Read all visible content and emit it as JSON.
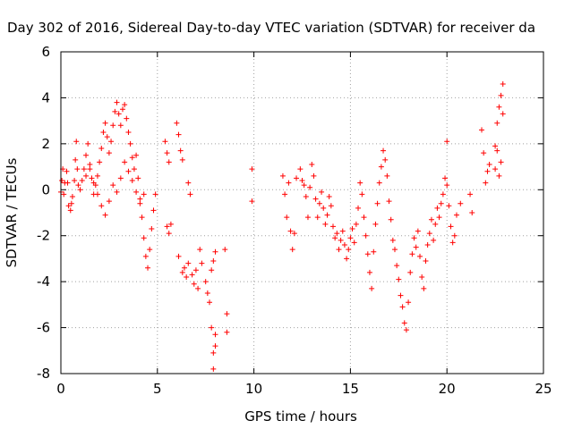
{
  "chart_data": {
    "type": "scatter",
    "title": "Day 302 of 2016, Sidereal Day-to-day VTEC variation (SDTVAR) for receiver da",
    "xlabel": "GPS time / hours",
    "ylabel": "SDTVAR / TECUs",
    "xlim": [
      0,
      25
    ],
    "ylim": [
      -8,
      6
    ],
    "xticks": [
      0,
      5,
      10,
      15,
      20,
      25
    ],
    "yticks": [
      -8,
      -6,
      -4,
      -2,
      0,
      2,
      4,
      6
    ],
    "grid": true,
    "marker": "+",
    "color": "#ff0000",
    "series": [
      {
        "name": "SDTVAR",
        "points": [
          [
            0.0,
            -0.1
          ],
          [
            0.05,
            0.4
          ],
          [
            0.1,
            0.9
          ],
          [
            0.15,
            -0.2
          ],
          [
            0.2,
            0.3
          ],
          [
            0.3,
            0.8
          ],
          [
            0.35,
            0.3
          ],
          [
            0.4,
            -0.7
          ],
          [
            0.5,
            -0.9
          ],
          [
            0.55,
            -0.6
          ],
          [
            0.6,
            -0.3
          ],
          [
            0.7,
            0.4
          ],
          [
            0.75,
            1.3
          ],
          [
            0.8,
            2.1
          ],
          [
            0.85,
            0.9
          ],
          [
            0.9,
            0.2
          ],
          [
            1.0,
            0.0
          ],
          [
            1.1,
            0.4
          ],
          [
            1.2,
            0.9
          ],
          [
            1.3,
            1.5
          ],
          [
            1.4,
            2.0
          ],
          [
            1.5,
            1.1
          ],
          [
            1.6,
            0.5
          ],
          [
            1.7,
            -0.2
          ],
          [
            1.8,
            0.2
          ],
          [
            1.9,
            0.6
          ],
          [
            2.0,
            1.2
          ],
          [
            2.1,
            1.8
          ],
          [
            2.2,
            2.5
          ],
          [
            2.3,
            2.9
          ],
          [
            2.4,
            2.3
          ],
          [
            2.5,
            1.6
          ],
          [
            2.6,
            2.1
          ],
          [
            2.7,
            2.8
          ],
          [
            2.8,
            3.4
          ],
          [
            2.9,
            3.8
          ],
          [
            3.0,
            3.3
          ],
          [
            3.1,
            2.8
          ],
          [
            3.2,
            3.5
          ],
          [
            3.3,
            3.7
          ],
          [
            3.4,
            3.1
          ],
          [
            3.5,
            2.5
          ],
          [
            3.6,
            2.0
          ],
          [
            3.7,
            1.4
          ],
          [
            3.8,
            0.9
          ],
          [
            3.9,
            1.5
          ],
          [
            4.0,
            0.5
          ],
          [
            4.1,
            -0.4
          ],
          [
            4.2,
            -1.2
          ],
          [
            4.3,
            -2.1
          ],
          [
            4.4,
            -2.9
          ],
          [
            4.5,
            -3.4
          ],
          [
            4.6,
            -2.6
          ],
          [
            4.7,
            -1.7
          ],
          [
            4.8,
            -0.9
          ],
          [
            4.9,
            -0.2
          ],
          [
            1.3,
            0.6
          ],
          [
            1.5,
            0.9
          ],
          [
            1.7,
            0.3
          ],
          [
            1.9,
            -0.2
          ],
          [
            2.1,
            -0.7
          ],
          [
            2.3,
            -1.1
          ],
          [
            2.5,
            -0.5
          ],
          [
            2.7,
            0.2
          ],
          [
            2.9,
            -0.1
          ],
          [
            3.1,
            0.5
          ],
          [
            3.3,
            1.2
          ],
          [
            3.5,
            0.8
          ],
          [
            3.7,
            0.4
          ],
          [
            3.9,
            -0.1
          ],
          [
            4.1,
            -0.6
          ],
          [
            4.3,
            -0.2
          ],
          [
            5.4,
            2.1
          ],
          [
            5.5,
            1.6
          ],
          [
            5.6,
            1.2
          ],
          [
            5.5,
            -1.6
          ],
          [
            5.6,
            -1.9
          ],
          [
            5.7,
            -1.5
          ],
          [
            6.0,
            2.9
          ],
          [
            6.1,
            2.4
          ],
          [
            6.1,
            -2.9
          ],
          [
            6.2,
            1.7
          ],
          [
            6.3,
            1.3
          ],
          [
            6.3,
            -3.6
          ],
          [
            6.4,
            -3.4
          ],
          [
            6.5,
            -3.8
          ],
          [
            6.6,
            -3.2
          ],
          [
            6.6,
            0.3
          ],
          [
            6.7,
            -0.2
          ],
          [
            6.8,
            -3.7
          ],
          [
            6.9,
            -4.1
          ],
          [
            7.0,
            -3.5
          ],
          [
            7.1,
            -4.3
          ],
          [
            7.2,
            -2.6
          ],
          [
            7.3,
            -3.2
          ],
          [
            7.5,
            -4.0
          ],
          [
            7.6,
            -4.5
          ],
          [
            7.7,
            -4.9
          ],
          [
            7.8,
            -3.5
          ],
          [
            7.9,
            -3.1
          ],
          [
            8.0,
            -2.7
          ],
          [
            7.8,
            -6.0
          ],
          [
            7.9,
            -7.1
          ],
          [
            8.0,
            -6.8
          ],
          [
            8.0,
            -6.3
          ],
          [
            7.9,
            -7.8
          ],
          [
            8.5,
            -2.6
          ],
          [
            8.6,
            -5.4
          ],
          [
            8.6,
            -6.2
          ],
          [
            9.9,
            0.9
          ],
          [
            9.9,
            -0.5
          ],
          [
            11.5,
            0.6
          ],
          [
            11.6,
            -0.2
          ],
          [
            11.7,
            -1.2
          ],
          [
            11.8,
            0.3
          ],
          [
            11.9,
            -1.8
          ],
          [
            12.0,
            -2.6
          ],
          [
            12.1,
            -1.9
          ],
          [
            12.2,
            0.5
          ],
          [
            12.4,
            0.9
          ],
          [
            12.5,
            0.4
          ],
          [
            12.6,
            0.2
          ],
          [
            12.7,
            -0.3
          ],
          [
            12.8,
            -1.2
          ],
          [
            12.9,
            0.1
          ],
          [
            13.0,
            1.1
          ],
          [
            13.1,
            0.6
          ],
          [
            13.2,
            -0.4
          ],
          [
            13.3,
            -1.2
          ],
          [
            13.4,
            -0.6
          ],
          [
            13.5,
            -0.1
          ],
          [
            13.6,
            -0.8
          ],
          [
            13.7,
            -1.5
          ],
          [
            13.8,
            -1.1
          ],
          [
            13.9,
            -0.3
          ],
          [
            14.0,
            -0.7
          ],
          [
            14.1,
            -1.6
          ],
          [
            14.2,
            -2.1
          ],
          [
            14.3,
            -1.9
          ],
          [
            14.4,
            -2.6
          ],
          [
            14.5,
            -2.2
          ],
          [
            14.6,
            -1.8
          ],
          [
            14.7,
            -2.4
          ],
          [
            14.8,
            -3.0
          ],
          [
            14.9,
            -2.6
          ],
          [
            15.0,
            -2.1
          ],
          [
            15.1,
            -1.7
          ],
          [
            15.2,
            -2.3
          ],
          [
            15.3,
            -1.5
          ],
          [
            15.4,
            -0.8
          ],
          [
            15.5,
            0.3
          ],
          [
            15.6,
            -0.2
          ],
          [
            15.7,
            -1.2
          ],
          [
            15.8,
            -2.0
          ],
          [
            15.9,
            -2.8
          ],
          [
            16.0,
            -3.6
          ],
          [
            16.1,
            -4.3
          ],
          [
            16.2,
            -2.7
          ],
          [
            16.3,
            -1.5
          ],
          [
            16.4,
            -0.6
          ],
          [
            16.5,
            0.3
          ],
          [
            16.6,
            1.0
          ],
          [
            16.7,
            1.7
          ],
          [
            16.8,
            1.3
          ],
          [
            16.9,
            0.6
          ],
          [
            17.0,
            -0.5
          ],
          [
            17.1,
            -1.3
          ],
          [
            17.2,
            -2.2
          ],
          [
            17.3,
            -2.6
          ],
          [
            17.4,
            -3.3
          ],
          [
            17.5,
            -3.9
          ],
          [
            17.6,
            -4.6
          ],
          [
            17.7,
            -5.1
          ],
          [
            17.8,
            -5.8
          ],
          [
            17.9,
            -6.1
          ],
          [
            18.0,
            -4.9
          ],
          [
            18.1,
            -3.6
          ],
          [
            18.2,
            -2.8
          ],
          [
            18.3,
            -2.1
          ],
          [
            18.4,
            -2.5
          ],
          [
            18.5,
            -1.8
          ],
          [
            18.6,
            -2.9
          ],
          [
            18.7,
            -3.8
          ],
          [
            18.8,
            -4.3
          ],
          [
            18.9,
            -3.1
          ],
          [
            19.0,
            -2.4
          ],
          [
            19.1,
            -1.9
          ],
          [
            19.2,
            -1.3
          ],
          [
            19.3,
            -2.2
          ],
          [
            19.4,
            -1.5
          ],
          [
            19.5,
            -0.8
          ],
          [
            19.6,
            -1.2
          ],
          [
            19.7,
            -0.6
          ],
          [
            19.8,
            -0.2
          ],
          [
            19.9,
            0.5
          ],
          [
            20.0,
            0.2
          ],
          [
            20.1,
            -0.7
          ],
          [
            20.2,
            -1.6
          ],
          [
            20.3,
            -2.3
          ],
          [
            20.4,
            -2.0
          ],
          [
            20.5,
            -1.1
          ],
          [
            20.0,
            2.1
          ],
          [
            20.7,
            -0.6
          ],
          [
            21.2,
            -0.2
          ],
          [
            21.3,
            -1.0
          ],
          [
            21.8,
            2.6
          ],
          [
            21.9,
            1.6
          ],
          [
            22.0,
            0.3
          ],
          [
            22.1,
            0.8
          ],
          [
            22.2,
            1.1
          ],
          [
            22.5,
            1.9
          ],
          [
            22.6,
            2.9
          ],
          [
            22.7,
            3.6
          ],
          [
            22.8,
            4.1
          ],
          [
            22.9,
            4.6
          ],
          [
            22.8,
            1.2
          ],
          [
            22.7,
            0.6
          ],
          [
            22.6,
            1.7
          ],
          [
            22.9,
            3.3
          ],
          [
            22.5,
            0.9
          ]
        ]
      }
    ]
  }
}
